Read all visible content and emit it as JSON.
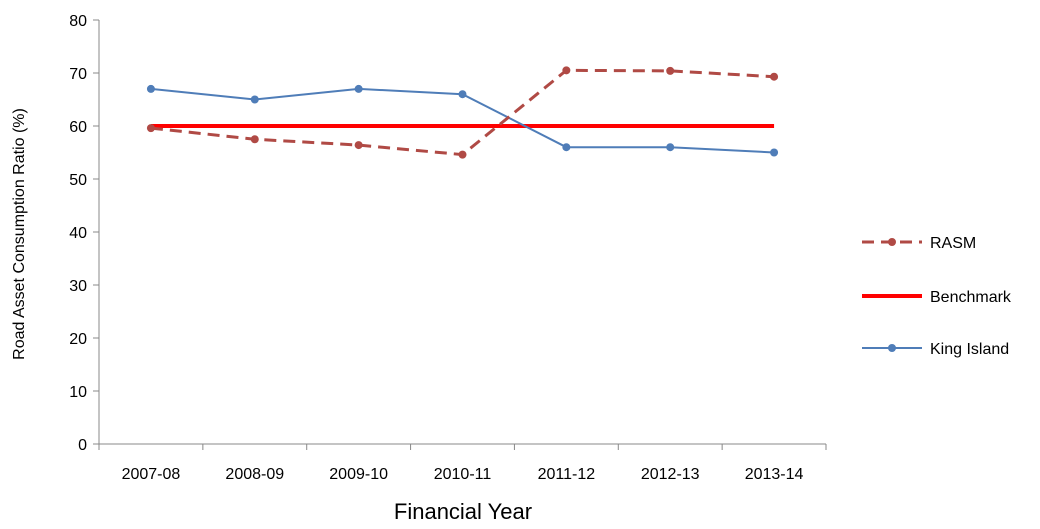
{
  "chart_data": {
    "type": "line",
    "categories": [
      "2007-08",
      "2008-09",
      "2009-10",
      "2010-11",
      "2011-12",
      "2012-13",
      "2013-14"
    ],
    "series": [
      {
        "name": "RASM",
        "values": [
          59.6,
          57.5,
          56.4,
          54.6,
          70.5,
          70.4,
          69.3
        ],
        "color": "#B04A45",
        "style": "dashed",
        "marker": "circle"
      },
      {
        "name": "Benchmark",
        "values": [
          60,
          60,
          60,
          60,
          60,
          60,
          60
        ],
        "color": "#FF0000",
        "style": "solid",
        "marker": "none"
      },
      {
        "name": "King Island",
        "values": [
          67,
          65,
          67,
          66,
          56,
          56,
          55
        ],
        "color": "#4F7DB8",
        "style": "solid",
        "marker": "circle"
      }
    ],
    "xlabel": "Financial Year",
    "ylabel": "Road Asset Consumption Ratio (%)",
    "ylim": [
      0,
      80
    ],
    "yticks": [
      0,
      10,
      20,
      30,
      40,
      50,
      60,
      70,
      80
    ],
    "grid": false,
    "legend": "right"
  }
}
